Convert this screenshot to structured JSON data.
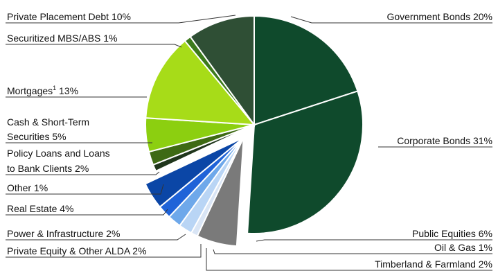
{
  "chart_data": {
    "type": "pie",
    "slices": [
      {
        "label": "Government Bonds  20%",
        "value": 20,
        "color": "#0f4a2c"
      },
      {
        "label": "Corporate Bonds 31%",
        "value": 31,
        "color": "#0f4a2c"
      },
      {
        "label": "Public Equities 6%",
        "value": 6,
        "color": "#7a7a7a"
      },
      {
        "label": "Oil & Gas 1%",
        "value": 1,
        "color": "#d9e5f5"
      },
      {
        "label": "Timberland & Farmland 2%",
        "value": 2,
        "color": "#b9d5f5"
      },
      {
        "label": "Private Equity & Other ALDA 2%",
        "value": 2,
        "color": "#6ea8ea"
      },
      {
        "label": "Power & Infrastructure 2%",
        "value": 2,
        "color": "#1f63d8"
      },
      {
        "label": "Real Estate 4%",
        "value": 4,
        "color": "#0b46a6"
      },
      {
        "label": "Other 1%",
        "value": 1,
        "color": "#20361c"
      },
      {
        "label": "Policy Loans and Loans to Bank Clients 2%",
        "value": 2,
        "color": "#3e6a14"
      },
      {
        "label": "Cash & Short-Term Securities 5%",
        "value": 5,
        "color": "#8ccf10"
      },
      {
        "label": "Mortgages¹ 13%",
        "value": 13,
        "color": "#a7dc18"
      },
      {
        "label": "Securitized MBS/ABS 1%",
        "value": 1,
        "color": "#3d7a1c"
      },
      {
        "label": "Private Placement Debt 10%",
        "value": 10,
        "color": "#2f4f35"
      }
    ],
    "labels": {
      "government_bonds": "Government Bonds  20%",
      "corporate_bonds": "Corporate Bonds 31%",
      "public_equities": "Public Equities 6%",
      "oil_gas": "Oil & Gas 1%",
      "timberland": "Timberland & Farmland 2%",
      "private_equity": "Private Equity & Other ALDA 2%",
      "power_infra": "Power & Infrastructure 2%",
      "real_estate": "Real Estate 4%",
      "other": "Other 1%",
      "policy_loans_1": "Policy Loans and Loans",
      "policy_loans_2": "to Bank Clients 2%",
      "cash_1": "Cash & Short-Term",
      "cash_2": "Securities 5%",
      "mortgages": "Mortgages",
      "mortgages_sup": "1",
      "mortgages_pct": " 13%",
      "securitized": "Securitized MBS/ABS 1%",
      "private_placement": "Private Placement Debt 10%"
    },
    "legend": "none"
  }
}
